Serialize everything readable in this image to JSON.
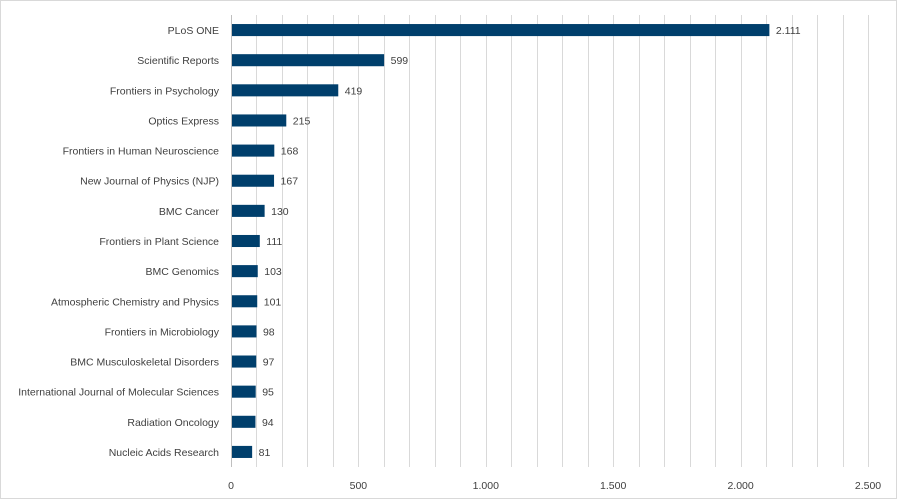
{
  "chart_data": {
    "type": "bar",
    "orientation": "horizontal",
    "categories": [
      "PLoS ONE",
      "Scientific Reports",
      "Frontiers in Psychology",
      "Optics Express",
      "Frontiers in Human Neuroscience",
      "New Journal of Physics (NJP)",
      "BMC Cancer",
      "Frontiers in Plant Science",
      "BMC Genomics",
      "Atmospheric Chemistry and Physics",
      "Frontiers in Microbiology",
      "BMC Musculoskeletal Disorders",
      "International Journal of Molecular Sciences",
      "Radiation Oncology",
      "Nucleic Acids Research"
    ],
    "values": [
      2111,
      599,
      419,
      215,
      168,
      167,
      130,
      111,
      103,
      101,
      98,
      97,
      95,
      94,
      81
    ],
    "data_labels": [
      "2.111",
      "599",
      "419",
      "215",
      "168",
      "167",
      "130",
      "111",
      "103",
      "101",
      "98",
      "97",
      "95",
      "94",
      "81"
    ],
    "xlim": [
      0,
      2500
    ],
    "x_ticks": [
      0,
      500,
      1000,
      1500,
      2000,
      2500
    ],
    "x_tick_labels": [
      "0",
      "500",
      "1.000",
      "1.500",
      "2.000",
      "2.500"
    ],
    "x_minor_step": 100,
    "grid": true,
    "legend": "none",
    "bar_color": "#003f6c"
  }
}
